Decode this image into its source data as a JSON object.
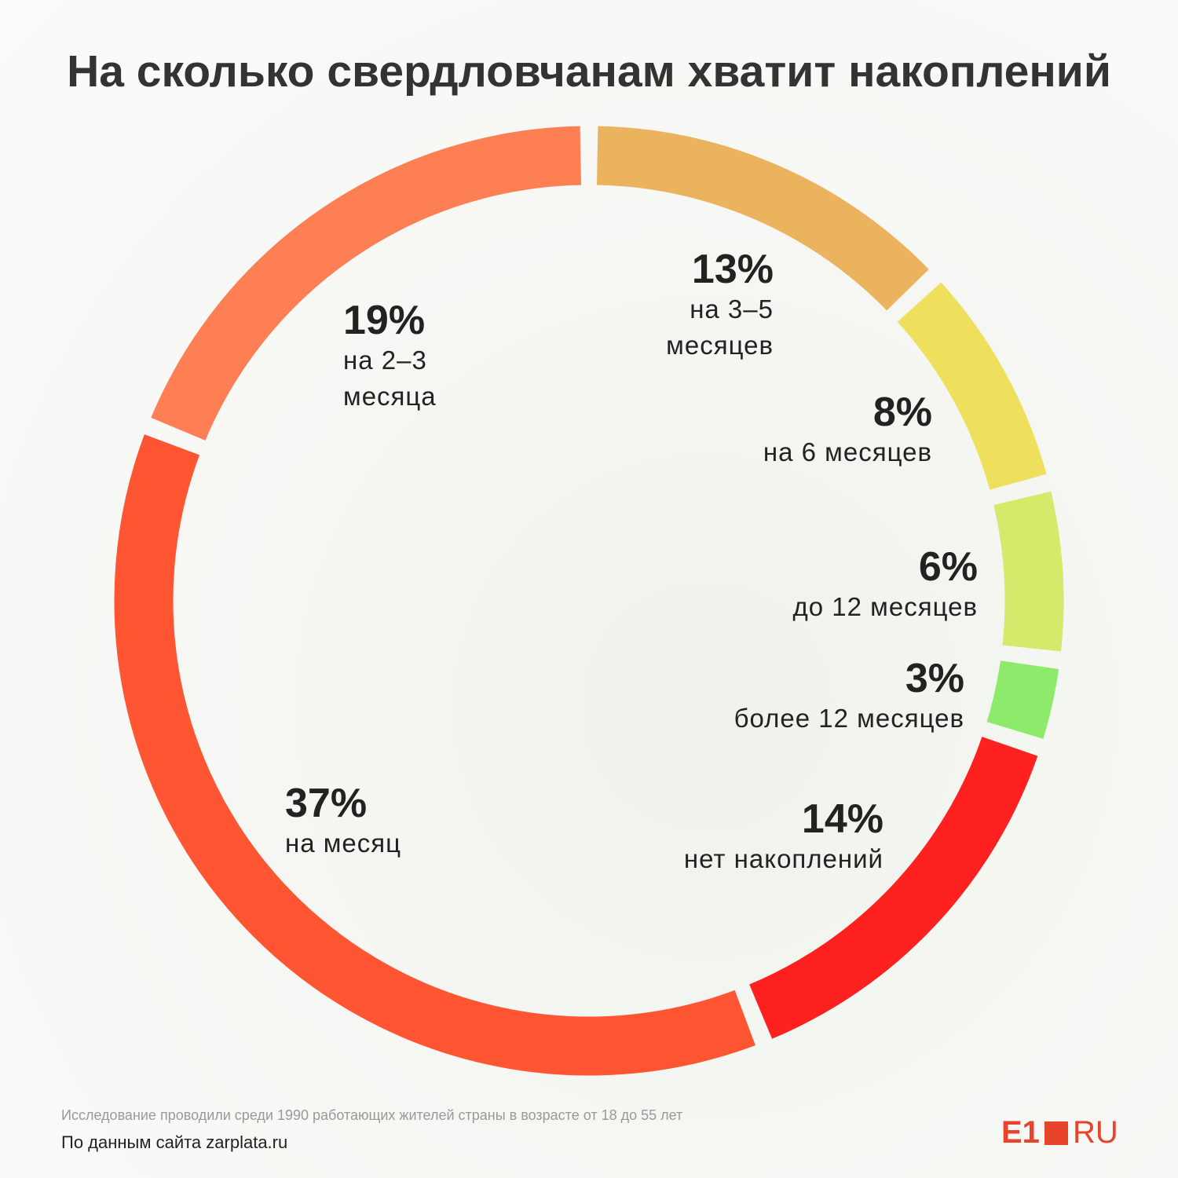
{
  "chart_data": {
    "type": "donut",
    "title": "На сколько свердловчанам хватит накоплений",
    "categories": [
      "на 3–5 месяцев",
      "на 6 месяцев",
      "до 12 месяцев",
      "более 12 месяцев",
      "нет накоплений",
      "на месяц",
      "на 2–3 месяца"
    ],
    "values": [
      13,
      8,
      6,
      3,
      14,
      37,
      19
    ],
    "value_labels": [
      "13%",
      "8%",
      "6%",
      "3%",
      "14%",
      "37%",
      "19%"
    ],
    "colors": [
      "#ECB35F",
      "#EEDF5D",
      "#D4EA6A",
      "#8EEA6A",
      "#FF2020",
      "#FF5533",
      "#FF7F55"
    ],
    "note": "Исследование проводили среди 1990 работающих жителей страны в возрасте от 18 до 55 лет",
    "source": "По данным сайта zarplata.ru"
  },
  "logo": {
    "left": "E1",
    "right": "RU"
  }
}
